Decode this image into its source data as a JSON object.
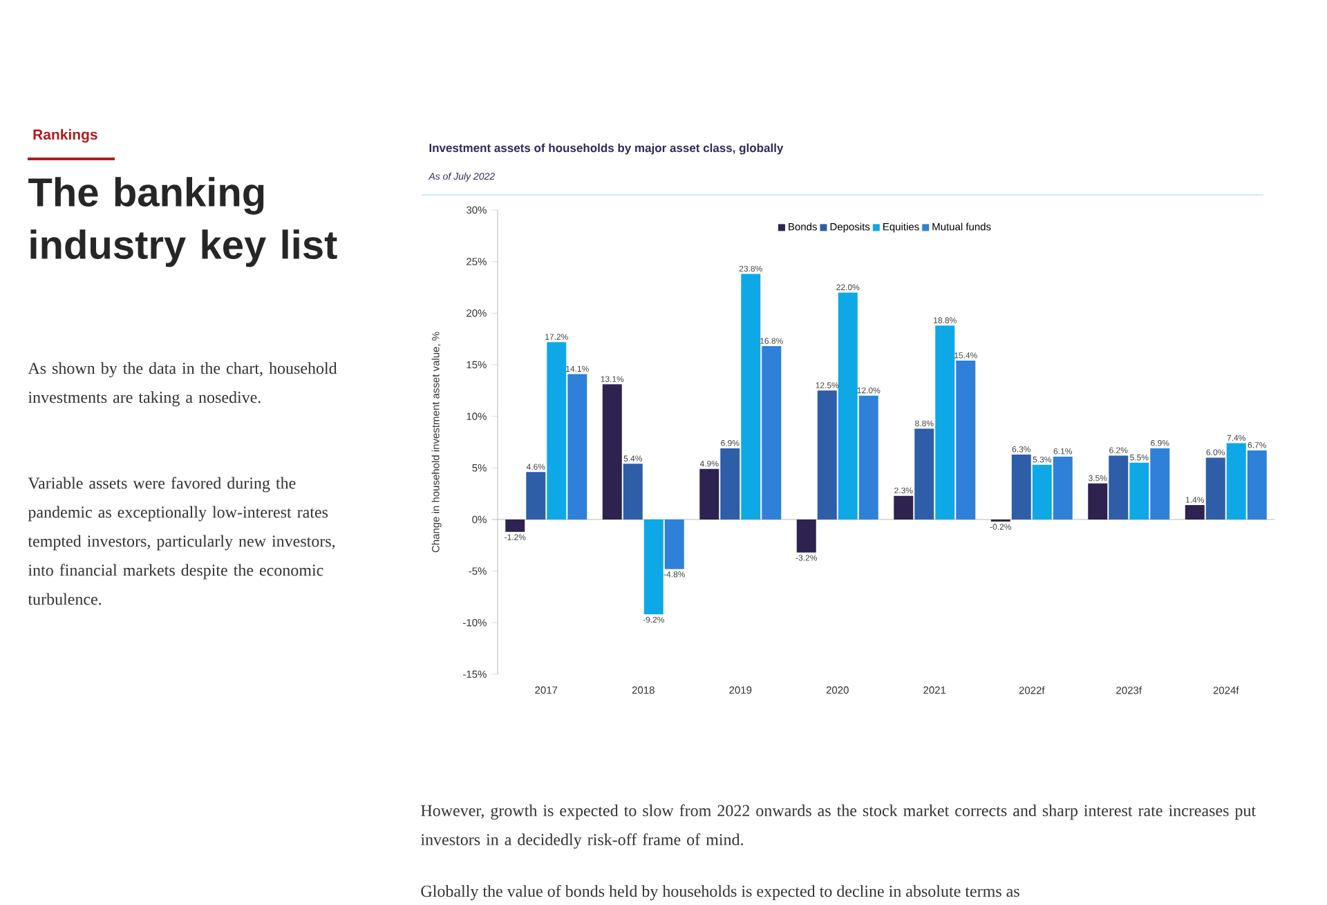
{
  "chart_data": {
    "type": "bar",
    "title": "Investment assets of households by major asset class, globally",
    "subtitle": "As of July 2022",
    "ylabel": "Change in household investment asset value, %",
    "categories": [
      "2017",
      "2018",
      "2019",
      "2020",
      "2021",
      "2022f",
      "2023f",
      "2024f"
    ],
    "series": [
      {
        "name": "Bonds",
        "color": "#2e2250",
        "values": [
          -1.2,
          13.1,
          4.9,
          -3.2,
          2.3,
          -0.2,
          3.5,
          1.4
        ],
        "value_labels": [
          "-1.2%",
          "13.1%",
          "4.9%",
          "-3.2%",
          "2.3%",
          "-0.2%",
          "3.5%",
          "1.4%"
        ]
      },
      {
        "name": "Deposits",
        "color": "#2f5ea8",
        "values": [
          4.6,
          5.4,
          6.9,
          12.5,
          8.8,
          6.3,
          6.2,
          6.0
        ],
        "value_labels": [
          "4.6%",
          "5.4%",
          "6.9%",
          "12.5%",
          "8.8%",
          "6.3%",
          "6.2%",
          "6.0%"
        ]
      },
      {
        "name": "Equities",
        "color": "#0fa8e6",
        "values": [
          17.2,
          -9.2,
          23.8,
          22.0,
          18.8,
          5.3,
          5.5,
          7.4
        ],
        "value_labels": [
          "17.2%",
          "-9.2%",
          "23.8%",
          "22.0%",
          "18.8%",
          "5.3%",
          "5.5%",
          "7.4%"
        ]
      },
      {
        "name": "Mutual funds",
        "color": "#2f80d8",
        "values": [
          14.1,
          -4.8,
          16.8,
          12.0,
          15.4,
          6.1,
          6.9,
          6.7
        ],
        "value_labels": [
          "14.1%",
          "-4.8%",
          "16.8%",
          "12.0%",
          "15.4%",
          "6.1%",
          "6.9%",
          "6.7%"
        ]
      }
    ],
    "ylim": [
      -15,
      30
    ],
    "yticks": [
      {
        "value": -15,
        "label": "-15%"
      },
      {
        "value": -10,
        "label": "-10%"
      },
      {
        "value": -5,
        "label": "-5%"
      },
      {
        "value": 0,
        "label": "0%"
      },
      {
        "value": 5,
        "label": "5%"
      },
      {
        "value": 10,
        "label": "10%"
      },
      {
        "value": 15,
        "label": "15%"
      },
      {
        "value": 20,
        "label": "20%"
      },
      {
        "value": 25,
        "label": "25%"
      },
      {
        "value": 30,
        "label": "30%"
      }
    ],
    "legend": "top",
    "annotations": [
      "Rankings",
      "The banking industry key list",
      "As shown by the data in the chart, household investments are taking a nosedive.",
      "Variable assets were favored during the pandemic as exceptionally low-interest rates tempted investors, particularly new investors, into financial markets despite the economic turbulence.",
      "However, growth is expected to slow from 2022 onwards as the stock market corrects and sharp interest rate increases put investors in a decidedly risk-off frame of mind.",
      "Globally the value of bonds held by households is expected to decline in absolute terms as"
    ]
  }
}
